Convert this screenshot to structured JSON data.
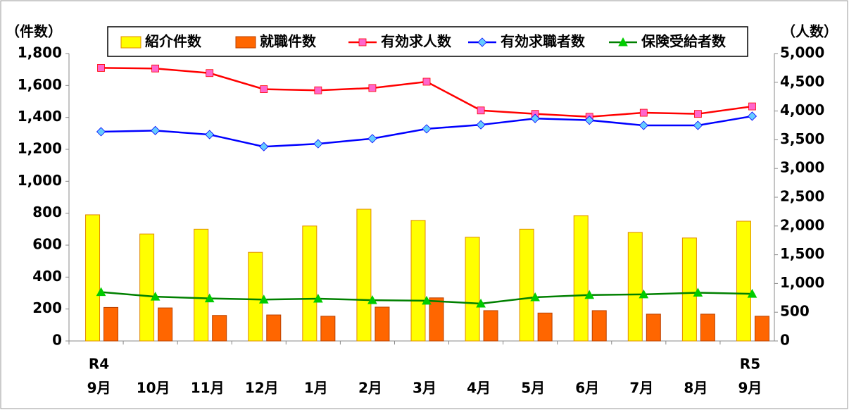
{
  "chart_data": {
    "type": "bar_line",
    "y_label": "（件数）",
    "y2_label": "（人数）",
    "categories": [
      "9月",
      "10月",
      "11月",
      "12月",
      "1月",
      "2月",
      "3月",
      "4月",
      "5月",
      "6月",
      "7月",
      "8月",
      "9月"
    ],
    "year_labels": [
      "R4",
      null,
      null,
      null,
      null,
      null,
      null,
      null,
      null,
      null,
      null,
      null,
      "R5"
    ],
    "series": [
      {
        "name": "紹介件数",
        "kind": "bar",
        "color": "#ffff00",
        "stroke": "#e08a00",
        "values": [
          790,
          670,
          700,
          555,
          720,
          825,
          755,
          650,
          700,
          785,
          680,
          645,
          750
        ]
      },
      {
        "name": "就職件数",
        "kind": "bar",
        "color": "#ff6600",
        "stroke": "#b84000",
        "values": [
          210,
          207,
          160,
          163,
          155,
          212,
          270,
          190,
          175,
          190,
          168,
          168,
          155
        ]
      },
      {
        "name": "有効求人数",
        "kind": "line",
        "axis": "y2",
        "color": "#ff0000",
        "marker": "square",
        "marker_color": "#ff66cc",
        "values": [
          4750,
          4740,
          4660,
          4380,
          4360,
          4400,
          4510,
          4010,
          3950,
          3900,
          3970,
          3950,
          4080
        ]
      },
      {
        "name": "有効求職者数",
        "kind": "line",
        "axis": "y2",
        "color": "#0000ff",
        "marker": "diamond",
        "marker_color": "#66ccff",
        "values": [
          3640,
          3660,
          3590,
          3380,
          3430,
          3520,
          3690,
          3760,
          3870,
          3840,
          3750,
          3750,
          3910
        ]
      },
      {
        "name": "保険受給者数",
        "kind": "line",
        "axis": "y2",
        "color": "#008000",
        "marker": "triangle",
        "marker_color": "#00cc00",
        "values": [
          850,
          770,
          740,
          720,
          735,
          710,
          700,
          650,
          760,
          800,
          810,
          840,
          820
        ]
      }
    ],
    "ylim": [
      0,
      1800
    ],
    "yticks": [
      0,
      200,
      400,
      600,
      800,
      {
        "value": 1000,
        "label": "1,000"
      },
      {
        "value": 1200,
        "label": "1,200"
      },
      {
        "value": 1400,
        "label": "1,400"
      },
      {
        "value": 1600,
        "label": "1,600"
      },
      {
        "value": 1800,
        "label": "1,800"
      }
    ],
    "y2lim": [
      0,
      5000
    ],
    "y2ticks": [
      0,
      500,
      {
        "value": 1000,
        "label": "1,000"
      },
      {
        "value": 1500,
        "label": "1,500"
      },
      {
        "value": 2000,
        "label": "2,000"
      },
      {
        "value": 2500,
        "label": "2,500"
      },
      {
        "value": 3000,
        "label": "3,000"
      },
      {
        "value": 3500,
        "label": "3,500"
      },
      {
        "value": 4000,
        "label": "4,000"
      },
      {
        "value": 4500,
        "label": "4,500"
      },
      {
        "value": 5000,
        "label": "5,000"
      }
    ]
  }
}
